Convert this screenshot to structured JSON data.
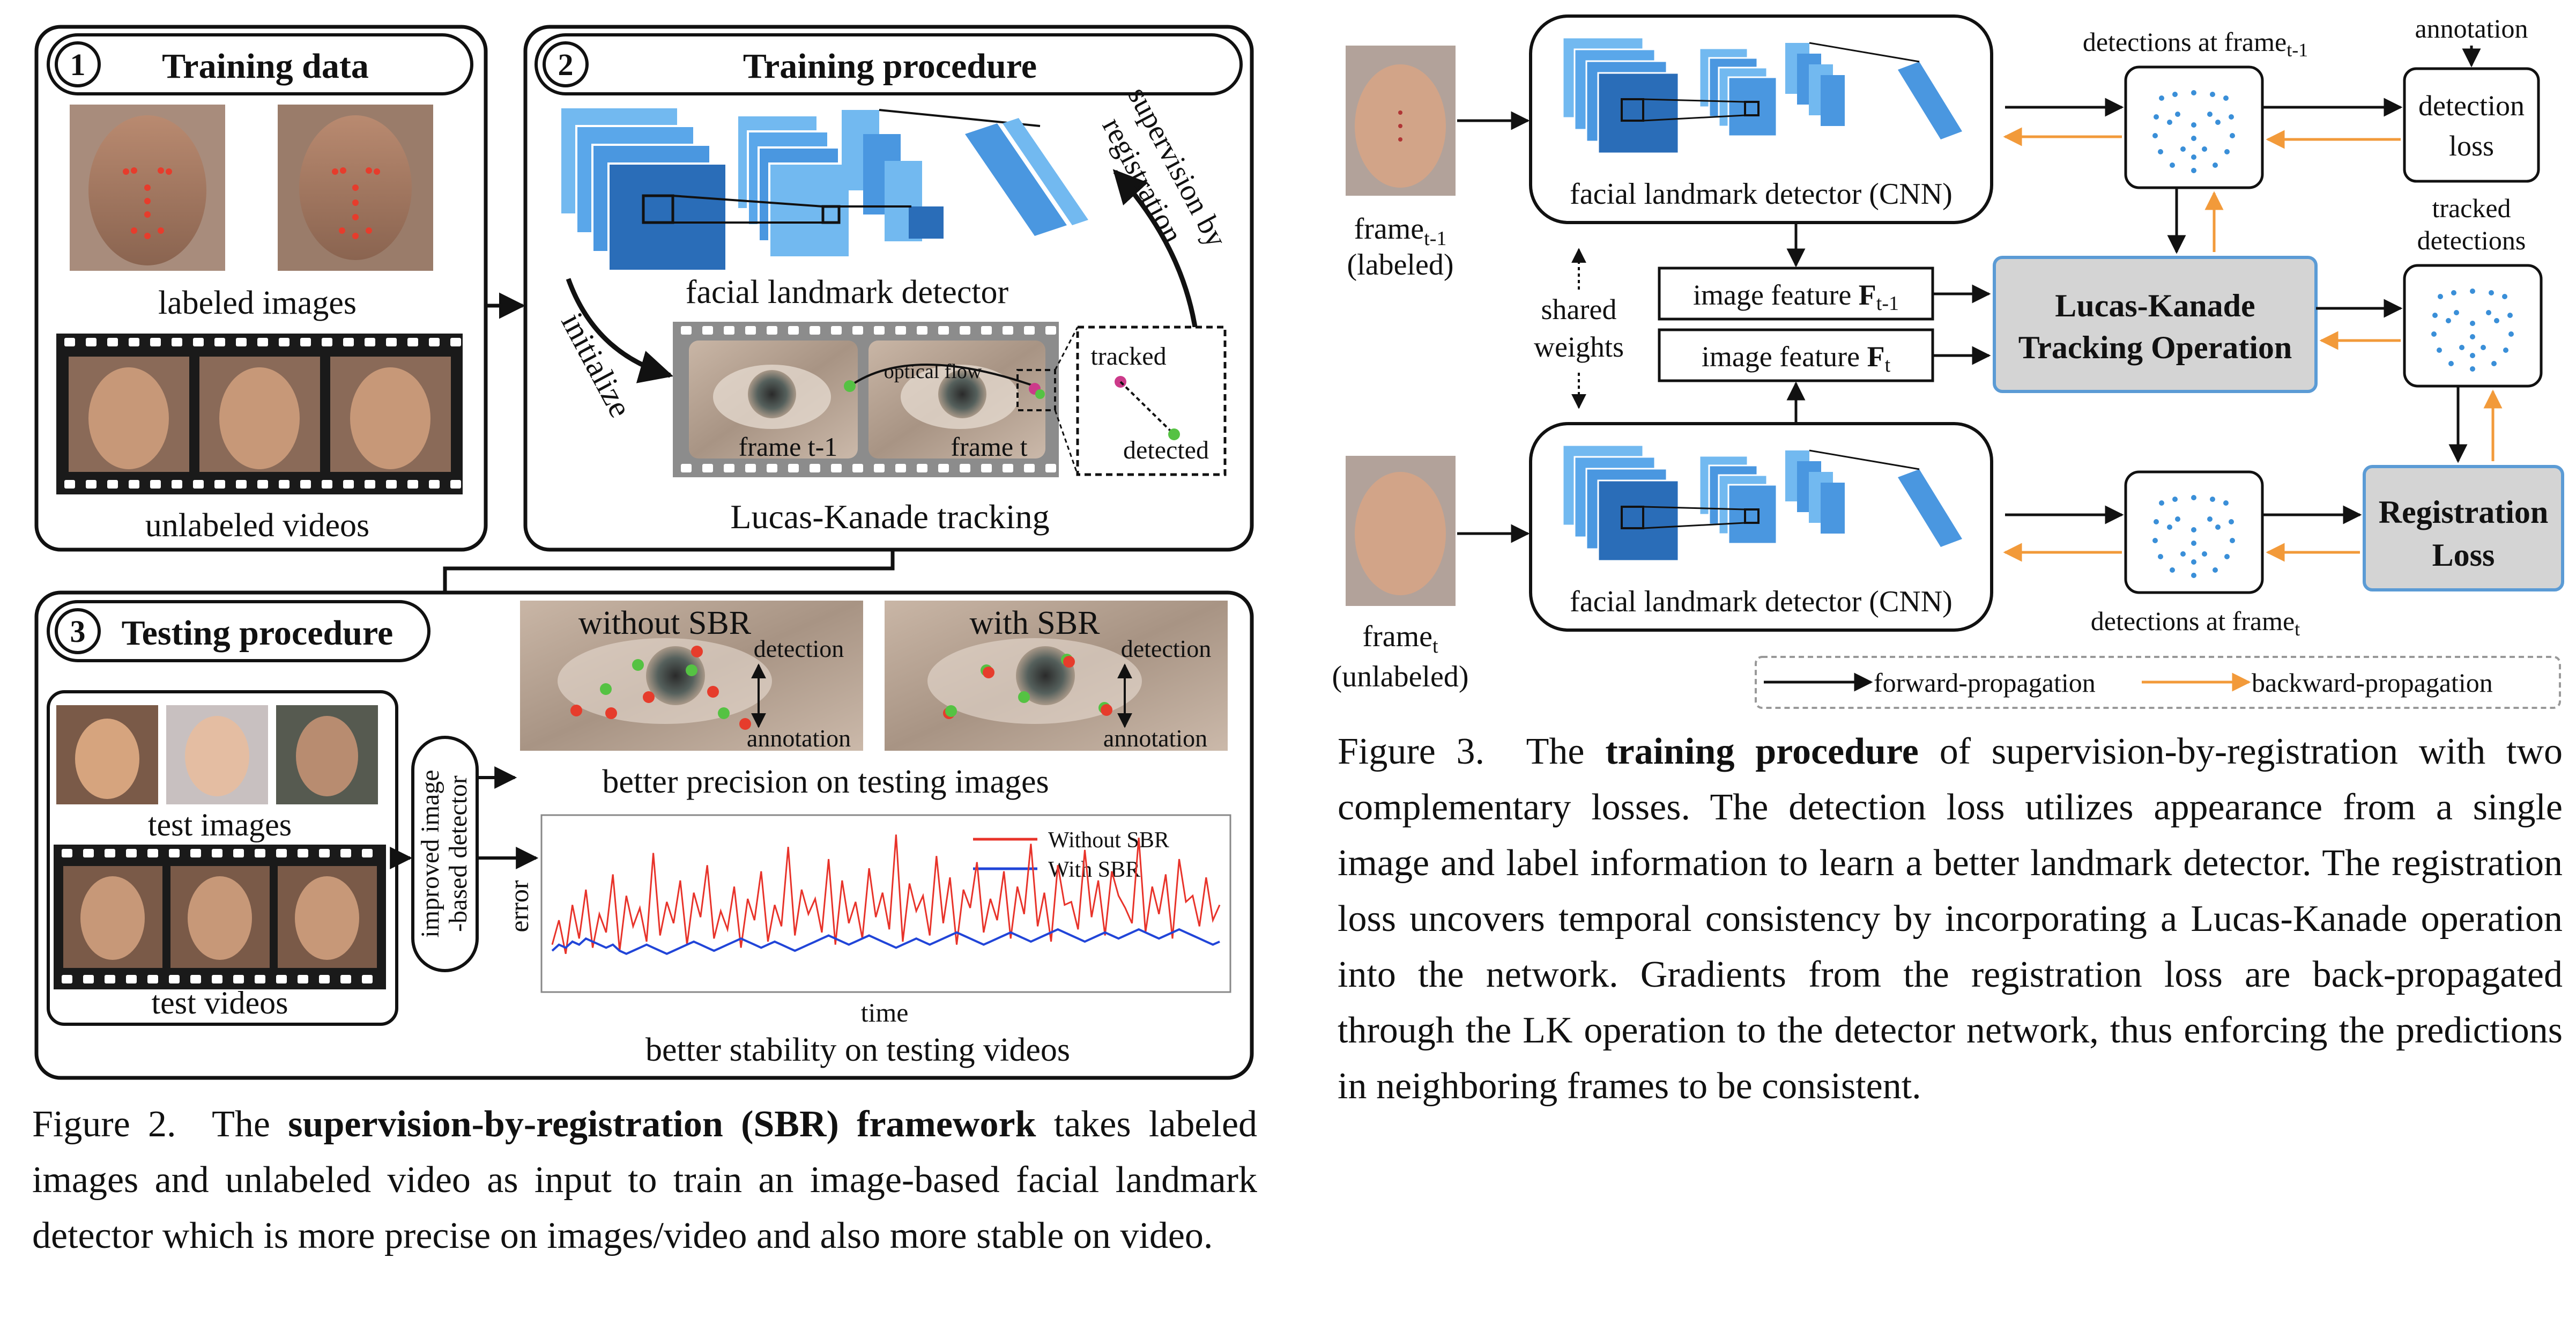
{
  "fig2": {
    "panel1": {
      "num": "1",
      "title": "Training data",
      "labeled": "labeled images",
      "unlabeled": "unlabeled videos"
    },
    "panel2": {
      "num": "2",
      "title": "Training procedure",
      "detector": "facial landmark detector",
      "initialize": "initialize",
      "supervision_1": "supervision by",
      "supervision_2": "registration",
      "optical_flow": "optical flow",
      "frame_prev": "frame t-1",
      "frame_cur": "frame t",
      "tracked": "tracked",
      "detected": "detected",
      "lk_tracking": "Lucas-Kanade tracking"
    },
    "panel3": {
      "num": "3",
      "title": "Testing procedure",
      "test_images": "test images",
      "test_videos": "test videos",
      "improved_1": "improved image",
      "improved_2": "-based detector",
      "without_sbr": "without SBR",
      "with_sbr": "with SBR",
      "detection": "detection",
      "annotation": "annotation",
      "precision": "better precision on testing images",
      "ylabel": "error",
      "xlabel": "time",
      "stability": "better stability on testing videos"
    },
    "caption": {
      "label": "Figure 2.",
      "pre": "The",
      "bold": "supervision-by-registration (SBR) framework",
      "rest": "takes labeled images and unlabeled video as input to train an image-based facial landmark detector which is more precise on images/video and also more stable on video."
    }
  },
  "fig3": {
    "frame_prev_1": "frame",
    "frame_prev_sub": "t-1",
    "frame_prev_2": "(labeled)",
    "frame_cur_1": "frame",
    "frame_cur_sub": "t",
    "frame_cur_2": "(unlabeled)",
    "detector_cnn": "facial landmark detector (CNN)",
    "shared_1": "shared",
    "shared_2": "weights",
    "feature_prev": "image feature",
    "feature_prev_bold": "F",
    "feature_prev_sub": "t-1",
    "feature_cur": "image feature",
    "feature_cur_bold": "F",
    "feature_cur_sub": "t",
    "lk_1": "Lucas-Kanade",
    "lk_2": "Tracking Operation",
    "det_prev": "detections at frame",
    "det_prev_sub": "t-1",
    "det_cur": "detections at frame",
    "det_cur_sub": "t",
    "annotation": "annotation",
    "det_loss_1": "detection",
    "det_loss_2": "loss",
    "tracked_1": "tracked",
    "tracked_2": "detections",
    "reg_loss_1": "Registration",
    "reg_loss_2": "Loss",
    "legend_forward": "forward-propagation",
    "legend_backward": "backward-propagation",
    "caption": {
      "label": "Figure 3.",
      "pre": "The",
      "bold": "training procedure",
      "rest": "of supervision-by-registration with two complementary losses. The detection loss utilizes appearance from a single image and label information to learn a better landmark detector. The registration loss uncovers temporal consistency by incorporating a Lucas-Kanade operation into the network. Gradients from the registration loss are back-propagated through the LK operation to the detector network, thus enforcing the predictions in neighboring frames to be consistent."
    }
  },
  "chart_data": {
    "type": "line",
    "title": "",
    "xlabel": "time",
    "ylabel": "error",
    "legend": "top-right",
    "series": [
      {
        "name": "Without SBR",
        "color": "#e8332a",
        "values": [
          12,
          20,
          9,
          25,
          14,
          30,
          11,
          22,
          16,
          35,
          10,
          28,
          18,
          24,
          13,
          42,
          15,
          26,
          19,
          33,
          12,
          29,
          21,
          38,
          14,
          23,
          17,
          31,
          11,
          27,
          20,
          36,
          13,
          25,
          18,
          44,
          15,
          30,
          22,
          27,
          16,
          40,
          12,
          33,
          19,
          26,
          14,
          37,
          21,
          29,
          17,
          48,
          13,
          32,
          23,
          28,
          15,
          41,
          19,
          34,
          12,
          30,
          24,
          39,
          16,
          27,
          20,
          36,
          14,
          31,
          22,
          45,
          18,
          29,
          13,
          38,
          25,
          26,
          17,
          43,
          21,
          33,
          15,
          36,
          28,
          24,
          19,
          47,
          16,
          31,
          22,
          35,
          14,
          40,
          26,
          28,
          18,
          34,
          20,
          25
        ]
      },
      {
        "name": "With SBR",
        "color": "#2145d8",
        "values": [
          10,
          12,
          11,
          13,
          12,
          14,
          13,
          12,
          11,
          12,
          10,
          9,
          10,
          11,
          12,
          11,
          10,
          9,
          10,
          11,
          12,
          13,
          12,
          11,
          10,
          11,
          12,
          13,
          14,
          13,
          12,
          11,
          12,
          13,
          12,
          11,
          10,
          11,
          12,
          13,
          14,
          15,
          14,
          13,
          12,
          13,
          14,
          15,
          14,
          13,
          12,
          11,
          12,
          13,
          14,
          13,
          12,
          13,
          14,
          15,
          16,
          15,
          14,
          13,
          12,
          13,
          14,
          15,
          16,
          15,
          14,
          13,
          14,
          15,
          16,
          17,
          16,
          15,
          14,
          13,
          14,
          15,
          16,
          15,
          14,
          15,
          16,
          17,
          16,
          15,
          14,
          15,
          16,
          17,
          16,
          15,
          14,
          13,
          12,
          13
        ]
      }
    ]
  },
  "colors": {
    "cnn_light": "#72b9f0",
    "cnn_mid": "#4a97e0",
    "cnn_dark": "#2a6db8",
    "lk_fill": "#d4d4d4",
    "lk_border": "#5b9bd5",
    "backward": "#f29a3a"
  }
}
